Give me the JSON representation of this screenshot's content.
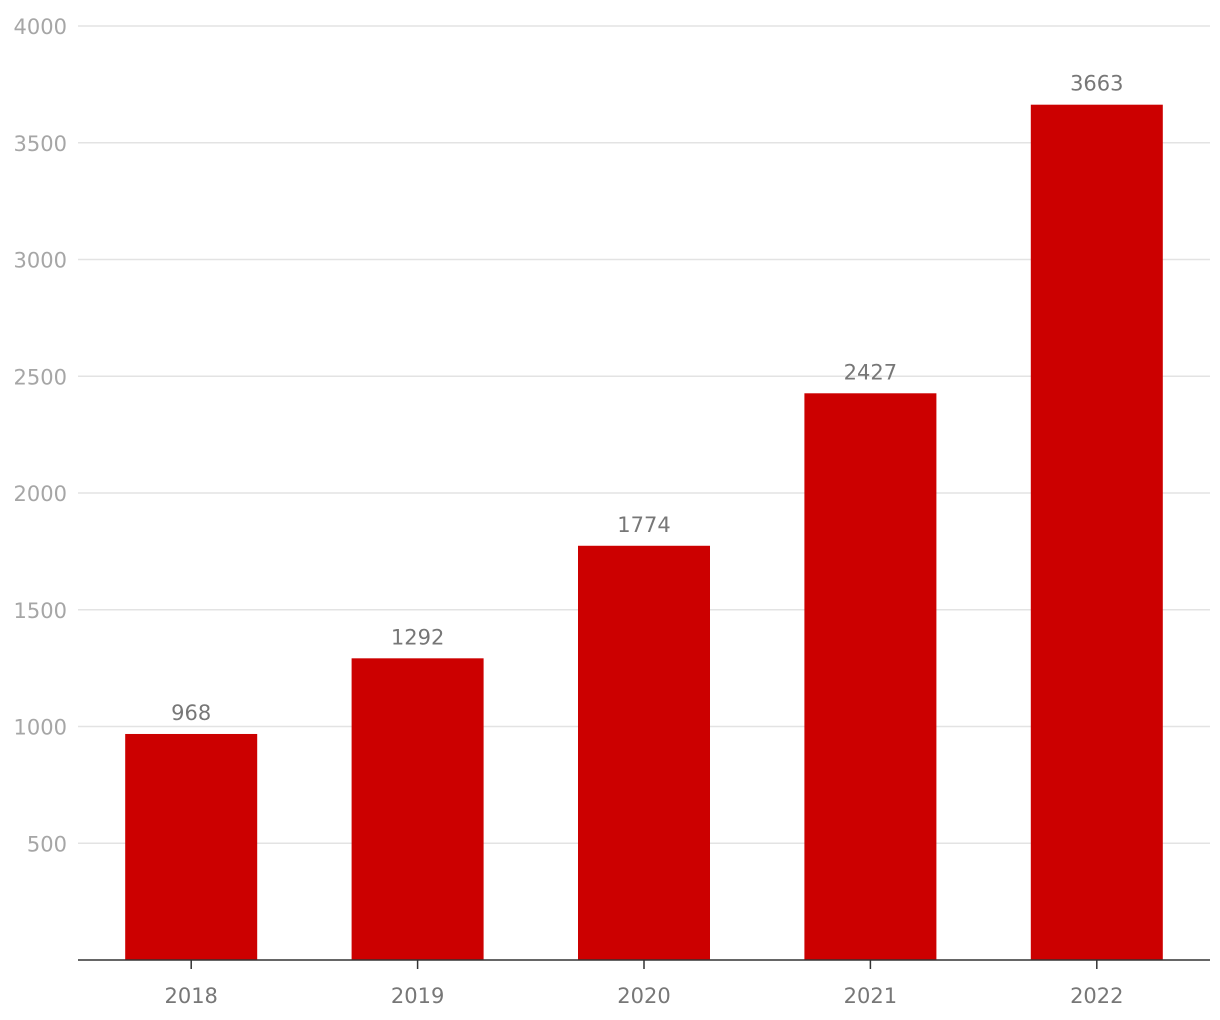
{
  "chart_data": {
    "type": "bar",
    "title": "",
    "xlabel": "",
    "ylabel": "",
    "categories": [
      "2018",
      "2019",
      "2020",
      "2021",
      "2022"
    ],
    "values": [
      968,
      1292,
      1774,
      2427,
      3663
    ],
    "data_labels": [
      "968",
      "1292",
      "1774",
      "2427",
      "3663"
    ],
    "ylim": [
      0,
      4000
    ],
    "yticks": [
      500,
      1000,
      1500,
      2000,
      2500,
      3000,
      3500,
      4000
    ],
    "ytick_labels": [
      "500",
      "1000",
      "1500",
      "2000",
      "2500",
      "3000",
      "3500",
      "4000"
    ],
    "grid": true,
    "bar_color": "#cc0000"
  }
}
